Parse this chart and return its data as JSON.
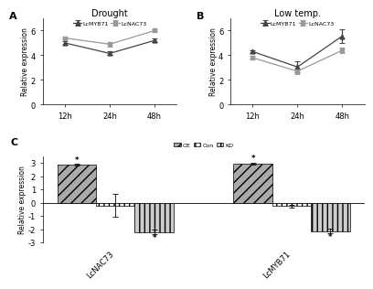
{
  "panel_A": {
    "title": "Drought",
    "ylabel": "Relative expression",
    "xticklabels": [
      "12h",
      "24h",
      "48h"
    ],
    "LcMYB71_mean": [
      5.0,
      4.15,
      5.2
    ],
    "LcMYB71_err": [
      0.15,
      0.15,
      0.15
    ],
    "LcNAC73_mean": [
      5.4,
      4.9,
      6.0
    ],
    "LcNAC73_err": [
      0.1,
      0.2,
      0.1
    ],
    "ylim": [
      0,
      7
    ],
    "yticks": [
      0,
      2,
      4,
      6
    ]
  },
  "panel_B": {
    "title": "Low temp.",
    "ylabel": "Relative expression",
    "xticklabels": [
      "12h",
      "24h",
      "48h"
    ],
    "LcMYB71_mean": [
      4.3,
      3.05,
      5.55
    ],
    "LcMYB71_err": [
      0.12,
      0.45,
      0.55
    ],
    "LcNAC73_mean": [
      3.8,
      2.7,
      4.4
    ],
    "LcNAC73_err": [
      0.15,
      0.25,
      0.2
    ],
    "ylim": [
      0,
      7
    ],
    "yticks": [
      0,
      2,
      4,
      6
    ]
  },
  "panel_C": {
    "ylabel": "Relative expression",
    "categories": [
      "LcNAC73",
      "LcMYB71"
    ],
    "OE_mean": [
      2.85,
      2.95
    ],
    "OE_err": [
      0.08,
      0.08
    ],
    "Con_mean": [
      -0.2,
      -0.25
    ],
    "Con_err": [
      0.85,
      0.12
    ],
    "KD_mean": [
      -2.2,
      -2.15
    ],
    "KD_err": [
      0.18,
      0.18
    ],
    "ylim": [
      -3,
      3.5
    ],
    "yticks": [
      -3,
      -2,
      -1,
      0,
      1,
      2,
      3
    ],
    "bar_width": 0.22,
    "OE_color": "#aaaaaa",
    "Con_color": "#ffffff",
    "KD_color": "#cccccc",
    "OE_hatch": "///",
    "Con_hatch": "|||",
    "KD_hatch": "|||"
  },
  "line_color_MYB": "#444444",
  "line_color_NAC": "#999999",
  "marker_MYB": "^",
  "marker_NAC": "s"
}
